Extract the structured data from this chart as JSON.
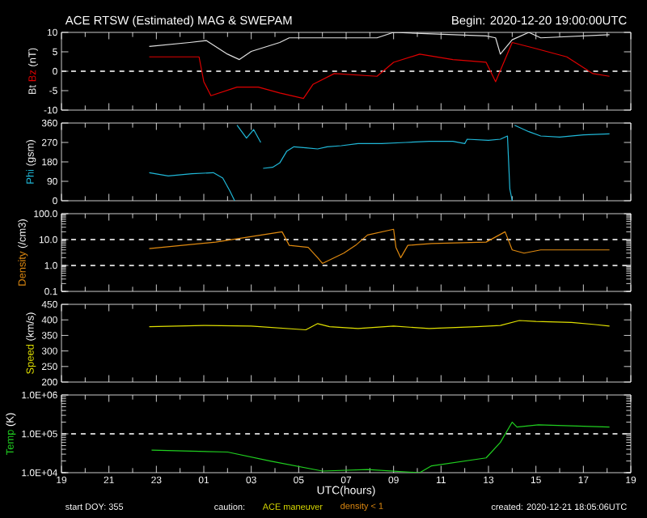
{
  "chart_data": [
    {
      "type": "line",
      "title": "ACE RTSW (Estimated) MAG & SWEPAM",
      "subtitle": "Begin: 2020-12-20 19:00:00UTC",
      "ylabel": "(nT)",
      "xlim": [
        "2020-12-20T19:00",
        "2020-12-21T19:00"
      ],
      "ylim": [
        -10,
        10
      ],
      "yticks": [
        -10,
        -5,
        0,
        5,
        10
      ],
      "tick_labels": "y",
      "legend": false,
      "xticks": [
        {
          "value": "2020-12-20T19:00",
          "label": null
        },
        {
          "value": "2020-12-20T21:00",
          "label": null
        },
        {
          "value": "2020-12-20T23:00",
          "label": null
        },
        {
          "value": "2020-12-21T01:00",
          "label": null
        },
        {
          "value": "2020-12-21T03:00",
          "label": null
        },
        {
          "value": "2020-12-21T05:00",
          "label": null
        },
        {
          "value": "2020-12-21T07:00",
          "label": null
        },
        {
          "value": "2020-12-21T09:00",
          "label": null
        },
        {
          "value": "2020-12-21T11:00",
          "label": null
        },
        {
          "value": "2020-12-21T13:00",
          "label": null
        },
        {
          "value": "2020-12-21T15:00",
          "label": null
        },
        {
          "value": "2020-12-21T17:00",
          "label": null
        },
        {
          "value": "2020-12-21T19:00",
          "label": null
        }
      ],
      "ref_lines": [
        {
          "axis": "y",
          "value": 0,
          "color": "#c8c8c8",
          "line_style": "dashed"
        }
      ],
      "series": [
        {
          "name": "Bt",
          "color": "#e0e0e0",
          "x": [
            "2020-12-20T22:42",
            "2020-12-21T00:24",
            "2020-12-21T01:06",
            "2020-12-21T02:00",
            "2020-12-21T02:30",
            "2020-12-21T03:00",
            "2020-12-21T04:12",
            "2020-12-21T04:36",
            "2020-12-21T08:18",
            "2020-12-21T09:00",
            "2020-12-21T12:54",
            "2020-12-21T13:18",
            "2020-12-21T13:30",
            "2020-12-21T14:00",
            "2020-12-21T14:42",
            "2020-12-21T15:12",
            "2020-12-21T18:06"
          ],
          "values": [
            6.4,
            7.4,
            7.9,
            4.4,
            3.0,
            5.1,
            7.4,
            8.6,
            8.6,
            10,
            9.1,
            8.6,
            4.4,
            8.1,
            10,
            8.6,
            9.4
          ]
        },
        {
          "name": "Bz",
          "color": "#e00000",
          "x": [
            "2020-12-20T22:42",
            "2020-12-21T00:48",
            "2020-12-21T01:00",
            "2020-12-21T01:18",
            "2020-12-21T02:24",
            "2020-12-21T03:18",
            "2020-12-21T04:12",
            "2020-12-21T05:12",
            "2020-12-21T05:36",
            "2020-12-21T06:30",
            "2020-12-21T08:18",
            "2020-12-21T09:00",
            "2020-12-21T10:06",
            "2020-12-21T11:30",
            "2020-12-21T12:54",
            "2020-12-21T13:18",
            "2020-12-21T14:00",
            "2020-12-21T14:54",
            "2020-12-21T16:18",
            "2020-12-21T17:24",
            "2020-12-21T18:06"
          ],
          "values": [
            3.7,
            3.7,
            -2.7,
            -6.3,
            -4.1,
            -4.1,
            -5.6,
            -7,
            -3.4,
            -0.6,
            -1.3,
            2.3,
            4.4,
            3,
            2.3,
            -2.7,
            7.4,
            6,
            3.7,
            -0.6,
            -1.3
          ]
        }
      ]
    },
    {
      "type": "line",
      "ylabel": "(gsm)",
      "xlim": [
        "2020-12-20T19:00",
        "2020-12-21T19:00"
      ],
      "ylim": [
        0,
        360
      ],
      "yticks": [
        0,
        90,
        180,
        270,
        360
      ],
      "tick_labels": "y",
      "legend": false,
      "xticks": [
        {
          "value": "2020-12-20T19:00",
          "label": null
        },
        {
          "value": "2020-12-20T21:00",
          "label": null
        },
        {
          "value": "2020-12-20T23:00",
          "label": null
        },
        {
          "value": "2020-12-21T01:00",
          "label": null
        },
        {
          "value": "2020-12-21T03:00",
          "label": null
        },
        {
          "value": "2020-12-21T05:00",
          "label": null
        },
        {
          "value": "2020-12-21T07:00",
          "label": null
        },
        {
          "value": "2020-12-21T09:00",
          "label": null
        },
        {
          "value": "2020-12-21T11:00",
          "label": null
        },
        {
          "value": "2020-12-21T13:00",
          "label": null
        },
        {
          "value": "2020-12-21T15:00",
          "label": null
        },
        {
          "value": "2020-12-21T17:00",
          "label": null
        },
        {
          "value": "2020-12-21T19:00",
          "label": null
        }
      ],
      "series": [
        {
          "name": "Phi",
          "color": "#20b8d8",
          "x": [
            "2020-12-20T22:42",
            "2020-12-20T23:30",
            "2020-12-21T00:30",
            "2020-12-21T01:24",
            "2020-12-21T01:48",
            "2020-12-21T02:06",
            "2020-12-21T02:18",
            "2020-12-21T02:21",
            "2020-12-21T02:24",
            "2020-12-21T02:48",
            "2020-12-21T03:06",
            "2020-12-21T03:24",
            "2020-12-21T03:27",
            "2020-12-21T03:30",
            "2020-12-21T03:54",
            "2020-12-21T04:12",
            "2020-12-21T04:30",
            "2020-12-21T04:48",
            "2020-12-21T05:18",
            "2020-12-21T05:48",
            "2020-12-21T06:12",
            "2020-12-21T06:48",
            "2020-12-21T07:30",
            "2020-12-21T08:30",
            "2020-12-21T09:30",
            "2020-12-21T10:30",
            "2020-12-21T11:30",
            "2020-12-21T12:00",
            "2020-12-21T12:06",
            "2020-12-21T13:00",
            "2020-12-21T13:30",
            "2020-12-21T13:48",
            "2020-12-21T13:54",
            "2020-12-21T14:00",
            "2020-12-21T14:03",
            "2020-12-21T14:06",
            "2020-12-21T14:42",
            "2020-12-21T15:12",
            "2020-12-21T16:00",
            "2020-12-21T17:00",
            "2020-12-21T18:06"
          ],
          "values": [
            130,
            115,
            125,
            130,
            105,
            45,
            0,
            null,
            350,
            290,
            330,
            270,
            null,
            150,
            155,
            175,
            230,
            250,
            245,
            240,
            250,
            255,
            265,
            265,
            270,
            275,
            275,
            265,
            285,
            280,
            285,
            300,
            55,
            0,
            null,
            350,
            320,
            300,
            295,
            305,
            310
          ]
        }
      ]
    },
    {
      "type": "line",
      "ylabel": "(/cm3)",
      "log": "y",
      "xlim": [
        "2020-12-20T19:00",
        "2020-12-21T19:00"
      ],
      "ylim": [
        0.1,
        100
      ],
      "tick_labels": "y",
      "legend": false,
      "yticks": [
        {
          "value": 0.1,
          "label": "0.1"
        },
        {
          "value": 1,
          "label": "1.0"
        },
        {
          "value": 10,
          "label": "10.0"
        },
        {
          "value": 100,
          "label": "100.0"
        }
      ],
      "xticks": [
        {
          "value": "2020-12-20T19:00",
          "label": null
        },
        {
          "value": "2020-12-20T21:00",
          "label": null
        },
        {
          "value": "2020-12-20T23:00",
          "label": null
        },
        {
          "value": "2020-12-21T01:00",
          "label": null
        },
        {
          "value": "2020-12-21T03:00",
          "label": null
        },
        {
          "value": "2020-12-21T05:00",
          "label": null
        },
        {
          "value": "2020-12-21T07:00",
          "label": null
        },
        {
          "value": "2020-12-21T09:00",
          "label": null
        },
        {
          "value": "2020-12-21T11:00",
          "label": null
        },
        {
          "value": "2020-12-21T13:00",
          "label": null
        },
        {
          "value": "2020-12-21T15:00",
          "label": null
        },
        {
          "value": "2020-12-21T17:00",
          "label": null
        },
        {
          "value": "2020-12-21T19:00",
          "label": null
        }
      ],
      "ref_lines": [
        {
          "axis": "y",
          "value": 1,
          "color": "#c8c8c8",
          "line_style": "dashed"
        },
        {
          "axis": "y",
          "value": 10,
          "color": "#c8c8c8",
          "line_style": "dashed"
        }
      ],
      "series": [
        {
          "name": "Density",
          "color": "#e08a10",
          "x": [
            "2020-12-20T22:42",
            "2020-12-21T01:30",
            "2020-12-21T04:18",
            "2020-12-21T04:36",
            "2020-12-21T05:24",
            "2020-12-21T05:48",
            "2020-12-21T06:00",
            "2020-12-21T06:54",
            "2020-12-21T07:24",
            "2020-12-21T07:54",
            "2020-12-21T09:00",
            "2020-12-21T09:06",
            "2020-12-21T09:18",
            "2020-12-21T09:36",
            "2020-12-21T10:36",
            "2020-12-21T12:54",
            "2020-12-21T13:42",
            "2020-12-21T14:00",
            "2020-12-21T14:30",
            "2020-12-21T15:12",
            "2020-12-21T18:06"
          ],
          "values": [
            4.5,
            8,
            20,
            6,
            5,
            2,
            1.2,
            3,
            6,
            15,
            25,
            5,
            2,
            6,
            7,
            8,
            20,
            4,
            3,
            4,
            4
          ]
        }
      ]
    },
    {
      "type": "line",
      "ylabel": "(km/s)",
      "xlim": [
        "2020-12-20T19:00",
        "2020-12-21T19:00"
      ],
      "ylim": [
        200,
        450
      ],
      "yticks": [
        200,
        250,
        300,
        350,
        400,
        450
      ],
      "tick_labels": "y",
      "legend": false,
      "xticks": [
        {
          "value": "2020-12-20T19:00",
          "label": null
        },
        {
          "value": "2020-12-20T21:00",
          "label": null
        },
        {
          "value": "2020-12-20T23:00",
          "label": null
        },
        {
          "value": "2020-12-21T01:00",
          "label": null
        },
        {
          "value": "2020-12-21T03:00",
          "label": null
        },
        {
          "value": "2020-12-21T05:00",
          "label": null
        },
        {
          "value": "2020-12-21T07:00",
          "label": null
        },
        {
          "value": "2020-12-21T09:00",
          "label": null
        },
        {
          "value": "2020-12-21T11:00",
          "label": null
        },
        {
          "value": "2020-12-21T13:00",
          "label": null
        },
        {
          "value": "2020-12-21T15:00",
          "label": null
        },
        {
          "value": "2020-12-21T17:00",
          "label": null
        },
        {
          "value": "2020-12-21T19:00",
          "label": null
        }
      ],
      "series": [
        {
          "name": "Speed",
          "color": "#e0e000",
          "x": [
            "2020-12-20T22:42",
            "2020-12-21T01:00",
            "2020-12-21T03:00",
            "2020-12-21T05:18",
            "2020-12-21T05:48",
            "2020-12-21T06:18",
            "2020-12-21T07:30",
            "2020-12-21T09:00",
            "2020-12-21T10:30",
            "2020-12-21T12:30",
            "2020-12-21T13:30",
            "2020-12-21T14:18",
            "2020-12-21T15:00",
            "2020-12-21T16:30",
            "2020-12-21T17:30",
            "2020-12-21T18:06"
          ],
          "values": [
            378,
            382,
            380,
            368,
            388,
            378,
            372,
            380,
            372,
            378,
            382,
            398,
            395,
            392,
            385,
            380
          ]
        }
      ]
    },
    {
      "type": "line",
      "ylabel": "(K)",
      "xlabel": "UTC(hours)",
      "log": "y",
      "xlim": [
        "2020-12-20T19:00",
        "2020-12-21T19:00"
      ],
      "ylim": [
        10000,
        1000000
      ],
      "legend": false,
      "yticks": [
        {
          "value": 10000,
          "label": "1.0E+04"
        },
        {
          "value": 100000,
          "label": "1.0E+05"
        },
        {
          "value": 1000000,
          "label": "1.0E+06"
        }
      ],
      "xticks": [
        {
          "value": "2020-12-20T19:00",
          "label": "19"
        },
        {
          "value": "2020-12-20T21:00",
          "label": "21"
        },
        {
          "value": "2020-12-20T23:00",
          "label": "23"
        },
        {
          "value": "2020-12-21T01:00",
          "label": "01"
        },
        {
          "value": "2020-12-21T03:00",
          "label": "03"
        },
        {
          "value": "2020-12-21T05:00",
          "label": "05"
        },
        {
          "value": "2020-12-21T07:00",
          "label": "07"
        },
        {
          "value": "2020-12-21T09:00",
          "label": "09"
        },
        {
          "value": "2020-12-21T11:00",
          "label": "11"
        },
        {
          "value": "2020-12-21T13:00",
          "label": "13"
        },
        {
          "value": "2020-12-21T15:00",
          "label": "15"
        },
        {
          "value": "2020-12-21T17:00",
          "label": "17"
        },
        {
          "value": "2020-12-21T19:00",
          "label": "19"
        }
      ],
      "ref_lines": [
        {
          "axis": "y",
          "value": 100000,
          "color": "#c8c8c8",
          "line_style": "dashed"
        }
      ],
      "annotations": [
        "start DOY: 355",
        "caution:",
        "ACE maneuver",
        "density < 1",
        "created: 2020-12-21 18:05:06UTC"
      ],
      "series": [
        {
          "name": "Temp",
          "color": "#20d020",
          "x": [
            "2020-12-20T22:48",
            "2020-12-21T02:00",
            "2020-12-21T03:48",
            "2020-12-21T06:00",
            "2020-12-21T07:54",
            "2020-12-21T10:06",
            "2020-12-21T10:36",
            "2020-12-21T12:54",
            "2020-12-21T13:30",
            "2020-12-21T14:00",
            "2020-12-21T14:12",
            "2020-12-21T15:06",
            "2020-12-21T18:06"
          ],
          "values": [
            38000,
            34000,
            20000,
            11000,
            12000,
            10000,
            15000,
            24000,
            60000,
            200000,
            150000,
            170000,
            150000
          ]
        }
      ]
    }
  ]
}
